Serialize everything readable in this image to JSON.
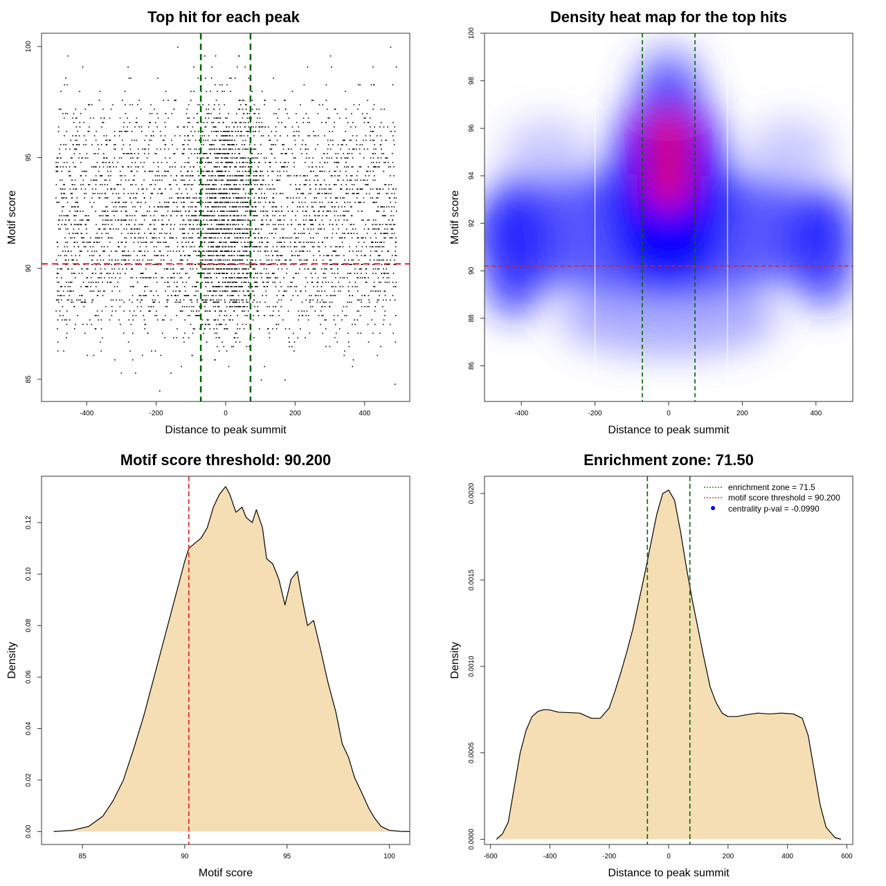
{
  "chart_data": [
    {
      "type": "scatter",
      "title": "Top hit for each peak",
      "xlabel": "Distance to peak summit",
      "ylabel": "Motif score",
      "xlim": [
        -530,
        530
      ],
      "ylim": [
        84,
        100.6
      ],
      "xticks": [
        "-400",
        "-200",
        "0",
        "200",
        "400"
      ],
      "yticks": [
        "85",
        "90",
        "95",
        "100"
      ],
      "reference_lines": {
        "vertical": [
          -71.5,
          71.5
        ],
        "horizontal": [
          90.2
        ]
      },
      "point_cloud": {
        "x_range": [
          -490,
          490
        ],
        "score_levels": [
          84.5,
          84.8,
          85.0,
          85.3,
          85.6,
          85.9,
          86.1,
          86.3,
          86.5,
          86.7,
          86.9,
          87.1,
          87.3,
          87.5,
          87.7,
          87.9,
          88.1,
          88.3,
          88.5,
          88.6,
          88.8,
          89.0,
          89.2,
          89.4,
          89.6,
          89.8,
          90.0,
          90.2,
          90.4,
          90.6,
          90.8,
          91.0,
          91.2,
          91.4,
          91.6,
          91.8,
          92.0,
          92.2,
          92.4,
          92.6,
          92.8,
          93.0,
          93.2,
          93.4,
          93.6,
          93.8,
          94.0,
          94.2,
          94.4,
          94.6,
          94.8,
          95.0,
          95.2,
          95.4,
          95.6,
          95.8,
          96.0,
          96.2,
          96.4,
          96.6,
          96.8,
          97.0,
          97.2,
          97.4,
          97.6,
          98.0,
          98.3,
          98.6,
          99.1,
          99.6,
          100.0
        ],
        "relative_counts": [
          1,
          1,
          2,
          3,
          4,
          6,
          8,
          10,
          12,
          16,
          20,
          26,
          32,
          38,
          44,
          52,
          60,
          68,
          76,
          80,
          88,
          96,
          100,
          104,
          108,
          112,
          116,
          118,
          122,
          124,
          128,
          130,
          132,
          134,
          134,
          136,
          136,
          136,
          134,
          132,
          130,
          130,
          128,
          126,
          124,
          122,
          120,
          116,
          112,
          108,
          104,
          100,
          92,
          86,
          80,
          74,
          70,
          66,
          60,
          54,
          46,
          40,
          34,
          28,
          24,
          18,
          14,
          12,
          10,
          6,
          2
        ]
      }
    },
    {
      "type": "heatmap",
      "title": "Density heat map for the top hits",
      "xlabel": "Distance to peak summit",
      "ylabel": "Motif score",
      "xlim": [
        -500,
        500
      ],
      "ylim": [
        84.5,
        100
      ],
      "xticks": [
        "-400",
        "-200",
        "0",
        "200",
        "400"
      ],
      "yticks": [
        "86",
        "88",
        "90",
        "92",
        "94",
        "96",
        "98",
        "100"
      ],
      "color_scale": [
        "#ffffff",
        "#0000ff",
        "#ff0000"
      ],
      "density_peaks": [
        {
          "x": 0,
          "y": 95.7,
          "level": "high"
        },
        {
          "x": 0,
          "y": 93.8,
          "level": "high"
        }
      ],
      "reference_lines": {
        "vertical": [
          -71.5,
          71.5,
          -200,
          160
        ],
        "horizontal": [
          90.2
        ]
      }
    },
    {
      "type": "area",
      "title": "Motif score threshold: 90.200",
      "xlabel": "Motif score",
      "ylabel": "Density",
      "xlim": [
        83,
        101
      ],
      "ylim": [
        -0.005,
        0.138
      ],
      "xticks": [
        "85",
        "90",
        "95",
        "100"
      ],
      "yticks": [
        "0.00",
        "0.02",
        "0.04",
        "0.06",
        "0.08",
        "0.10",
        "0.12"
      ],
      "x": [
        83.6,
        84.5,
        85.3,
        86.0,
        86.5,
        87.0,
        87.5,
        88.0,
        88.5,
        89.0,
        89.5,
        90.0,
        90.2,
        90.5,
        90.8,
        91.1,
        91.4,
        91.7,
        92.0,
        92.2,
        92.5,
        92.8,
        93.0,
        93.3,
        93.5,
        93.8,
        94.0,
        94.3,
        94.6,
        94.9,
        95.2,
        95.5,
        95.7,
        96.0,
        96.3,
        96.6,
        97.0,
        97.4,
        97.7,
        98.0,
        98.3,
        98.6,
        99.0,
        99.3,
        99.6,
        100.0,
        100.5,
        101.0
      ],
      "y": [
        0.0,
        0.0005,
        0.002,
        0.006,
        0.012,
        0.02,
        0.032,
        0.045,
        0.06,
        0.075,
        0.09,
        0.105,
        0.11,
        0.112,
        0.114,
        0.118,
        0.126,
        0.131,
        0.134,
        0.131,
        0.124,
        0.126,
        0.122,
        0.12,
        0.125,
        0.118,
        0.106,
        0.104,
        0.098,
        0.088,
        0.098,
        0.101,
        0.092,
        0.08,
        0.082,
        0.072,
        0.058,
        0.046,
        0.034,
        0.029,
        0.021,
        0.016,
        0.009,
        0.005,
        0.002,
        0.0005,
        0.0001,
        0.0
      ],
      "threshold": 90.2
    },
    {
      "type": "area",
      "title": "Enrichment zone: 71.50",
      "xlabel": "Distance to peak summit",
      "ylabel": "Density",
      "xlim": [
        -620,
        620
      ],
      "ylim": [
        -3e-05,
        0.0021
      ],
      "xticks": [
        "-600",
        "-400",
        "-200",
        "0",
        "200",
        "400",
        "600"
      ],
      "yticks": [
        "0.0000",
        "0.0005",
        "0.0010",
        "0.0015",
        "0.0020"
      ],
      "x": [
        -580,
        -560,
        -540,
        -520,
        -500,
        -480,
        -460,
        -440,
        -420,
        -400,
        -370,
        -340,
        -300,
        -260,
        -230,
        -200,
        -180,
        -160,
        -140,
        -120,
        -100,
        -80,
        -60,
        -40,
        -20,
        0,
        20,
        40,
        60,
        80,
        100,
        120,
        140,
        160,
        180,
        200,
        230,
        260,
        300,
        340,
        380,
        420,
        450,
        470,
        490,
        510,
        530,
        560,
        580
      ],
      "y": [
        0.0,
        3e-05,
        0.0001,
        0.0003,
        0.0005,
        0.00063,
        0.00071,
        0.00074,
        0.00075,
        0.000748,
        0.000735,
        0.000733,
        0.00073,
        0.0007,
        0.0007,
        0.00076,
        0.00086,
        0.00097,
        0.00109,
        0.00122,
        0.00138,
        0.00154,
        0.00171,
        0.00188,
        0.002,
        0.00202,
        0.00196,
        0.00178,
        0.00157,
        0.00138,
        0.00121,
        0.00104,
        0.00088,
        0.00079,
        0.00073,
        0.00071,
        0.00071,
        0.00072,
        0.00073,
        0.000725,
        0.00073,
        0.000725,
        0.0007,
        0.0006,
        0.0004,
        0.0002,
        7e-05,
        1e-05,
        0.0
      ],
      "enrichment_zone": 71.5,
      "legend": {
        "placement": "top-right",
        "entries": [
          {
            "label": "enrichment zone = 71.5",
            "color": "#006400",
            "style": "dotted-line"
          },
          {
            "label": "motif score threshold = 90.200",
            "color": "#ff0000",
            "style": "dotted-line"
          },
          {
            "label": "centrality p-val = -0.0990",
            "color": "#0000ff",
            "style": "point"
          }
        ]
      }
    }
  ],
  "colors": {
    "fill": "#f5deb3",
    "green_line": "#006400",
    "red_line": "#e41a1c",
    "points": "#000000"
  }
}
